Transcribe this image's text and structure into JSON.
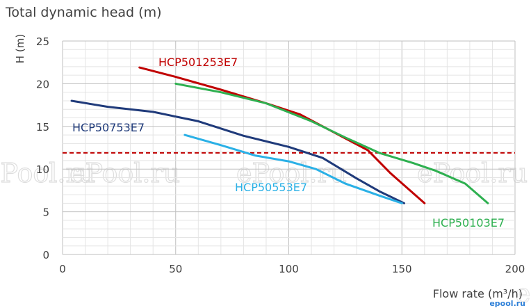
{
  "chart_data": {
    "type": "line",
    "title": "Total dynamic head (m)",
    "xlabel": "Flow rate (m³/h)",
    "ylabel": "H (m)",
    "xlim": [
      0,
      200
    ],
    "ylim": [
      0,
      25
    ],
    "x_ticks": [
      0,
      50,
      100,
      150,
      200
    ],
    "y_ticks": [
      0,
      5,
      10,
      15,
      20,
      25
    ],
    "grid": true,
    "reference_line": {
      "y": 11.9,
      "style": "dashed",
      "color": "#c00000"
    },
    "series": [
      {
        "name": "HCP501253E7",
        "color": "#c00000",
        "x": [
          34,
          50,
          70,
          90,
          105,
          115,
          125,
          135,
          145,
          160
        ],
        "y": [
          21.9,
          20.8,
          19.3,
          17.7,
          16.4,
          15.0,
          13.6,
          12.2,
          9.5,
          6.0
        ]
      },
      {
        "name": "HCP50103E7",
        "color": "#2eb050",
        "x": [
          50,
          70,
          90,
          110,
          125,
          140,
          155,
          165,
          178,
          188
        ],
        "y": [
          20.0,
          19.0,
          17.7,
          15.6,
          13.7,
          11.9,
          10.7,
          9.8,
          8.3,
          6.0
        ]
      },
      {
        "name": "HCP50753E7",
        "color": "#1f3a7a",
        "x": [
          4,
          20,
          40,
          60,
          80,
          100,
          115,
          130,
          140,
          151
        ],
        "y": [
          18.0,
          17.3,
          16.7,
          15.6,
          13.9,
          12.6,
          11.3,
          8.9,
          7.4,
          6.0
        ]
      },
      {
        "name": "HCP50553E7",
        "color": "#2ab0e6",
        "x": [
          54,
          70,
          85,
          100,
          112,
          125,
          140,
          150
        ],
        "y": [
          14.0,
          12.8,
          11.6,
          10.9,
          10.0,
          8.3,
          6.9,
          6.0
        ]
      }
    ]
  },
  "watermarks": [
    "ePool.ru",
    "ePool.ru",
    "ePool.ru",
    "ePool.ru",
    "ePool.ru"
  ],
  "logo_text": "epool.ru"
}
